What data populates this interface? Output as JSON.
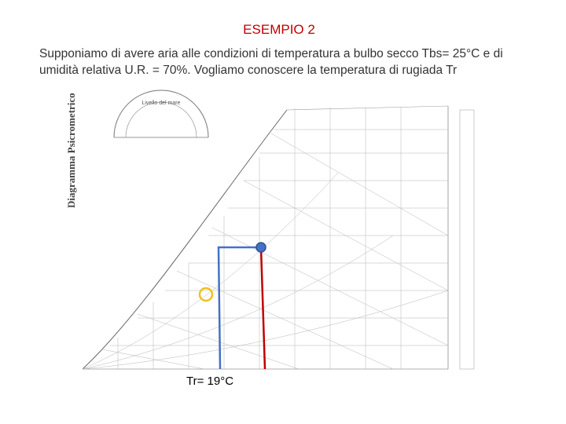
{
  "title": "ESEMPIO 2",
  "body": "Supponiamo di avere aria alle condizioni di temperatura a bulbo secco Tbs= 25°C e di umidità relativa U.R. = 70%. Vogliamo conoscere la temperatura di rugiada Tr",
  "figure": {
    "chart_title": "Diagramma Psicrometrico",
    "inset_title": "Livello del mare",
    "annotation": "Tr= 19°C"
  }
}
